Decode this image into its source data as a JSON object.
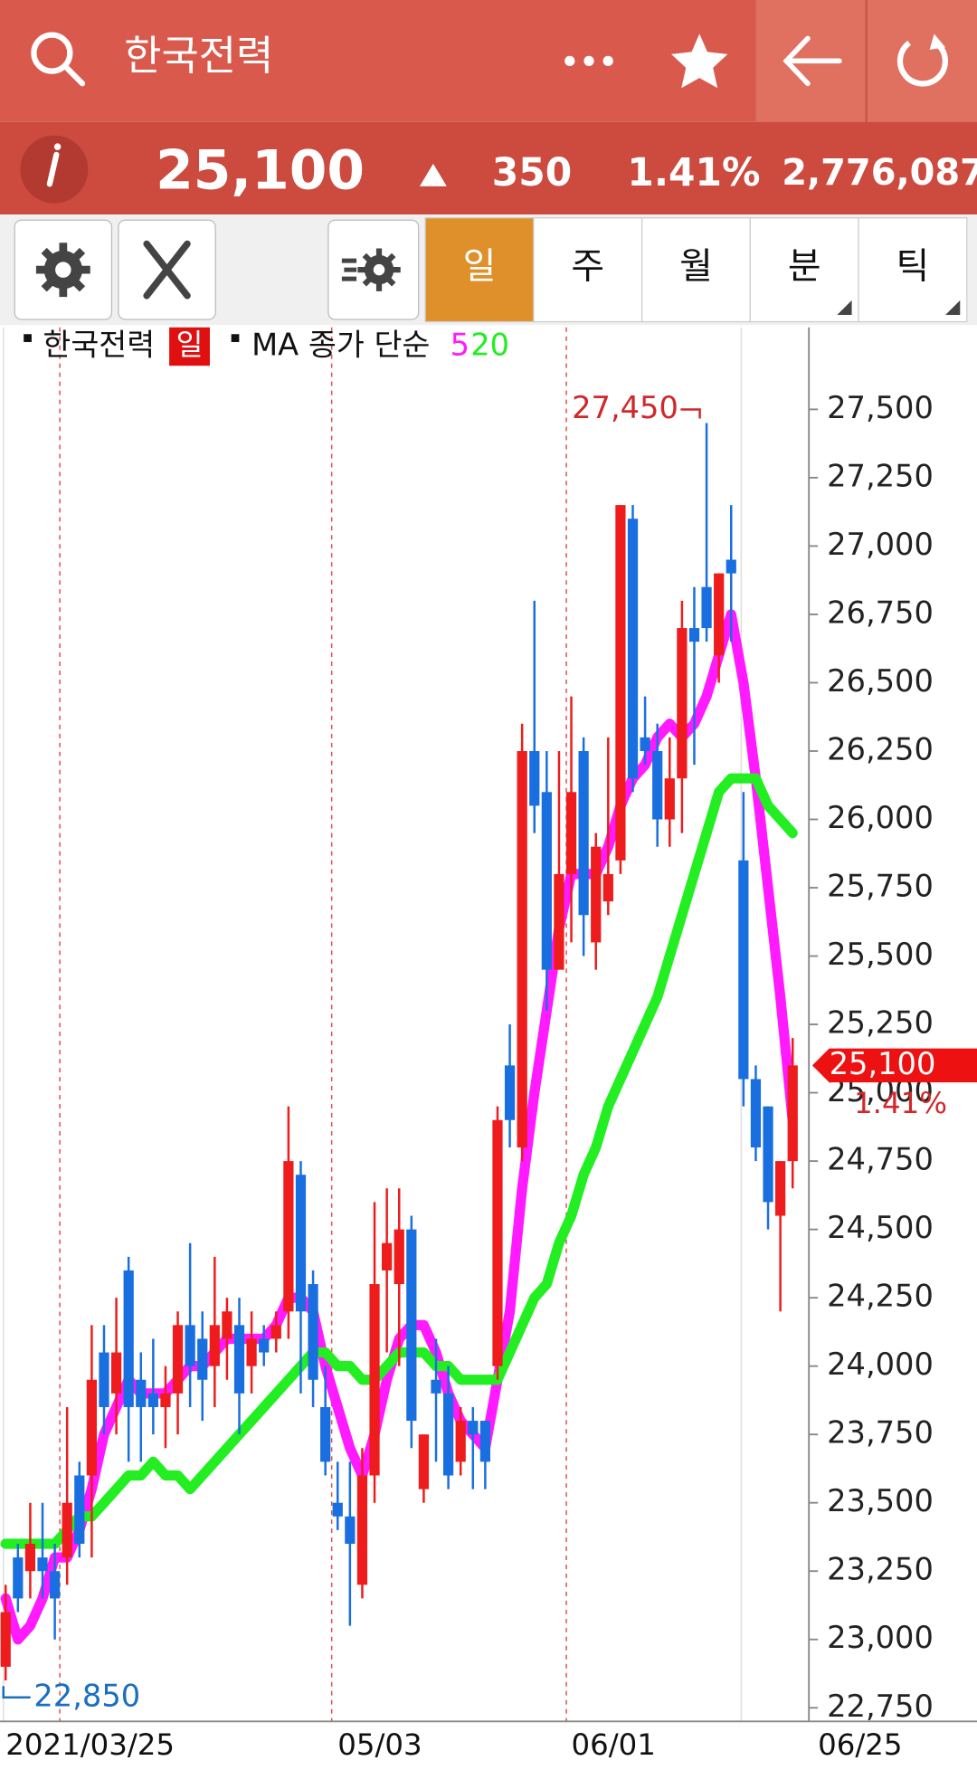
{
  "header": {
    "title": "한국전력"
  },
  "quote": {
    "price": "25,100",
    "change": "350",
    "rate": "1.41%",
    "volume": "2,776,087"
  },
  "tabs": [
    "일",
    "주",
    "월",
    "분",
    "틱"
  ],
  "chart_data": {
    "type": "candlestick",
    "legend_name": "한국전력",
    "period": "일",
    "ma_label": "MA 종가 단순",
    "up_color": "#ee1c1c",
    "down_color": "#1a6fe0",
    "categories": [
      "2021/03/25",
      null,
      null,
      null,
      null,
      null,
      null,
      null,
      null,
      null,
      null,
      null,
      null,
      null,
      null,
      null,
      null,
      null,
      null,
      null,
      null,
      null,
      null,
      null,
      null,
      null,
      null,
      "05/03",
      null,
      null,
      null,
      null,
      null,
      null,
      null,
      null,
      null,
      null,
      null,
      null,
      null,
      null,
      null,
      null,
      null,
      null,
      "06/01",
      null,
      null,
      null,
      null,
      null,
      null,
      null,
      null,
      null,
      null,
      null,
      null,
      null,
      null,
      null,
      null,
      null,
      null
    ],
    "axis_end_label": "06/25",
    "open": [
      22900,
      23300,
      23250,
      23300,
      23250,
      23300,
      23600,
      23600,
      24050,
      23900,
      24350,
      23950,
      23900,
      23850,
      23900,
      24150,
      24100,
      24000,
      24100,
      24150,
      24000,
      24100,
      24100,
      24200,
      24700,
      24300,
      23850,
      23500,
      23450,
      23200,
      23600,
      24350,
      24300,
      24500,
      23550,
      23950,
      23900,
      23650,
      23800,
      23800,
      24000,
      25100,
      24800,
      26250,
      26100,
      25450,
      25800,
      26250,
      25550,
      25700,
      25850,
      27100,
      26300,
      26250,
      26000,
      26150,
      26700,
      26850,
      26600,
      26950,
      25850,
      25050,
      24950,
      24550,
      24750
    ],
    "high": [
      23200,
      23350,
      23500,
      23500,
      23350,
      23850,
      23650,
      24150,
      24150,
      24250,
      24400,
      24050,
      24100,
      24000,
      24200,
      24450,
      24200,
      24400,
      24250,
      24250,
      24200,
      24150,
      24200,
      24950,
      24750,
      24350,
      24000,
      23650,
      23650,
      23700,
      24600,
      24650,
      24650,
      24550,
      23750,
      24100,
      24000,
      23850,
      23850,
      23800,
      24950,
      25250,
      26350,
      26800,
      26250,
      26250,
      26450,
      26300,
      25950,
      26300,
      27150,
      27150,
      26450,
      26350,
      26300,
      26800,
      26850,
      27450,
      26900,
      27150,
      26100,
      25100,
      24950,
      24750,
      25200
    ],
    "low": [
      22850,
      23100,
      23150,
      23150,
      23000,
      23200,
      23300,
      23300,
      23750,
      23750,
      23650,
      23650,
      23750,
      23700,
      23750,
      23850,
      23800,
      23850,
      23950,
      23750,
      23900,
      24000,
      24050,
      24100,
      23900,
      23850,
      23600,
      23400,
      23050,
      23150,
      23500,
      24050,
      24000,
      23700,
      23500,
      23650,
      23550,
      23600,
      23550,
      23550,
      23950,
      24800,
      24750,
      25950,
      25300,
      25450,
      25550,
      25500,
      25450,
      25650,
      25800,
      26100,
      26200,
      25900,
      25900,
      25950,
      26200,
      26650,
      26500,
      26650,
      24950,
      24750,
      24500,
      24200,
      24650
    ],
    "close": [
      23100,
      23150,
      23350,
      23250,
      23150,
      23500,
      23350,
      23950,
      23850,
      24050,
      23850,
      23850,
      23850,
      23900,
      24150,
      24000,
      23950,
      24150,
      24200,
      23900,
      24100,
      24050,
      24150,
      24750,
      24200,
      23950,
      23650,
      23450,
      23350,
      23600,
      24300,
      24450,
      24500,
      23800,
      23750,
      23900,
      23600,
      23800,
      23750,
      23650,
      24900,
      24900,
      26250,
      26050,
      25450,
      25800,
      26100,
      25650,
      25900,
      25800,
      27150,
      26150,
      26250,
      26000,
      26150,
      26700,
      26650,
      26700,
      26900,
      26900,
      25050,
      24800,
      24600,
      24750,
      25100
    ],
    "series": [
      {
        "name": "5",
        "color": "#ff1aff",
        "values": [
          23150,
          23000,
          23050,
          23150,
          23300,
          23300,
          23400,
          23550,
          23750,
          23850,
          23950,
          23900,
          23900,
          23900,
          23950,
          24000,
          24000,
          24050,
          24100,
          24100,
          24100,
          24100,
          24150,
          24250,
          24250,
          24200,
          24000,
          23850,
          23700,
          23600,
          23750,
          23950,
          24100,
          24150,
          24150,
          24050,
          23900,
          23800,
          23750,
          23700,
          23950,
          24200,
          24650,
          25000,
          25300,
          25600,
          25800,
          25800,
          25800,
          25900,
          26050,
          26150,
          26200,
          26300,
          26350,
          26300,
          26350,
          26450,
          26600,
          26750,
          26500,
          26150,
          25750,
          25350,
          24900
        ]
      },
      {
        "name": "20",
        "color": "#22ee22",
        "values": [
          23350,
          23350,
          23350,
          23350,
          23350,
          23400,
          23450,
          23450,
          23500,
          23550,
          23600,
          23600,
          23650,
          23600,
          23600,
          23550,
          23600,
          23650,
          23700,
          23750,
          23800,
          23850,
          23900,
          23950,
          24000,
          24050,
          24050,
          24000,
          24000,
          23950,
          23950,
          24000,
          24050,
          24050,
          24050,
          24000,
          24000,
          23950,
          23950,
          23950,
          23950,
          24050,
          24150,
          24250,
          24300,
          24450,
          24550,
          24700,
          24800,
          24950,
          25050,
          25150,
          25250,
          25350,
          25500,
          25650,
          25800,
          25950,
          26100,
          26150,
          26150,
          26150,
          26050,
          26000,
          25950
        ]
      }
    ],
    "high_label": {
      "value": 27450,
      "label": "27,450"
    },
    "low_label": {
      "value": 22850,
      "label": "22,850"
    },
    "price_tag": {
      "value": 25100,
      "label": "25,100",
      "change_label": "1.41%"
    },
    "ylim": [
      22700,
      27800
    ],
    "yticks": [
      {
        "value": 22750,
        "label": "22,750"
      },
      {
        "value": 23000,
        "label": "23,000"
      },
      {
        "value": 23250,
        "label": "23,250"
      },
      {
        "value": 23500,
        "label": "23,500"
      },
      {
        "value": 23750,
        "label": "23,750"
      },
      {
        "value": 24000,
        "label": "24,000"
      },
      {
        "value": 24250,
        "label": "24,250"
      },
      {
        "value": 24500,
        "label": "24,500"
      },
      {
        "value": 24750,
        "label": "24,750"
      },
      {
        "value": 25000,
        "label": "25,000"
      },
      {
        "value": 25250,
        "label": "25,250"
      },
      {
        "value": 25500,
        "label": "25,500"
      },
      {
        "value": 25750,
        "label": "25,750"
      },
      {
        "value": 26000,
        "label": "26,000"
      },
      {
        "value": 26250,
        "label": "26,250"
      },
      {
        "value": 26500,
        "label": "26,500"
      },
      {
        "value": 26750,
        "label": "26,750"
      },
      {
        "value": 27000,
        "label": "27,000"
      },
      {
        "value": 27250,
        "label": "27,250"
      },
      {
        "value": 27500,
        "label": "27,500"
      }
    ]
  }
}
